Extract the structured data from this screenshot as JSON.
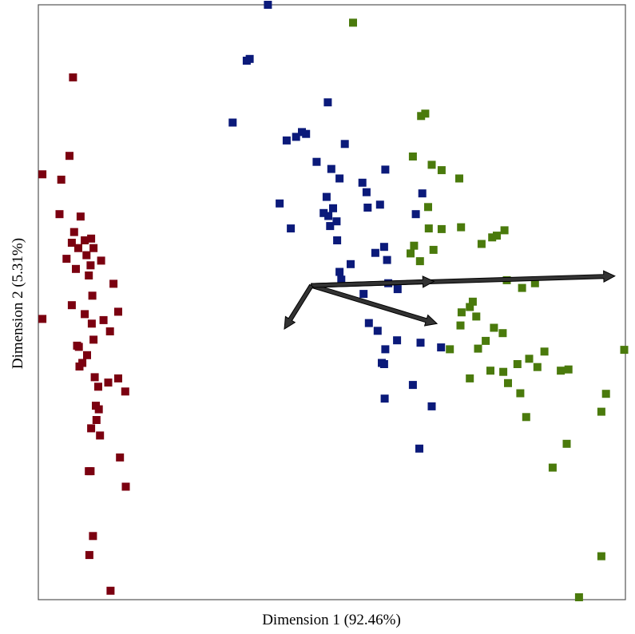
{
  "chart_data": {
    "type": "scatter",
    "title": "",
    "xlabel": "Dimension 1 (92.46%)",
    "ylabel": "Dimension 2 (5.31%)",
    "xlim": [
      0,
      100
    ],
    "ylim": [
      0,
      100
    ],
    "grid": false,
    "legend": "none",
    "colors": {
      "red": "#7b0010",
      "blue": "#0b1a7a",
      "green": "#4a7a0c",
      "arrow": "#333333"
    },
    "series": [
      {
        "color": "#7b0010",
        "points": [
          [
            5.9,
            87.8
          ],
          [
            0.7,
            71.5
          ],
          [
            5.3,
            74.6
          ],
          [
            3.9,
            70.6
          ],
          [
            3.6,
            64.8
          ],
          [
            7.2,
            64.4
          ],
          [
            6.1,
            61.8
          ],
          [
            5.7,
            60.0
          ],
          [
            7.9,
            60.4
          ],
          [
            9.0,
            60.7
          ],
          [
            6.8,
            59.1
          ],
          [
            9.4,
            59.1
          ],
          [
            8.2,
            57.9
          ],
          [
            4.8,
            57.3
          ],
          [
            10.7,
            57.0
          ],
          [
            8.9,
            56.2
          ],
          [
            6.4,
            55.6
          ],
          [
            8.6,
            54.5
          ],
          [
            12.8,
            53.1
          ],
          [
            9.2,
            51.1
          ],
          [
            5.7,
            49.5
          ],
          [
            13.6,
            48.4
          ],
          [
            7.9,
            48.0
          ],
          [
            0.7,
            47.2
          ],
          [
            11.1,
            47.0
          ],
          [
            9.1,
            46.4
          ],
          [
            12.2,
            45.1
          ],
          [
            9.4,
            43.7
          ],
          [
            6.6,
            42.7
          ],
          [
            6.9,
            42.5
          ],
          [
            8.3,
            41.1
          ],
          [
            7.5,
            39.8
          ],
          [
            7.0,
            39.2
          ],
          [
            9.6,
            37.4
          ],
          [
            13.6,
            37.2
          ],
          [
            11.9,
            36.5
          ],
          [
            10.2,
            35.8
          ],
          [
            14.8,
            35.0
          ],
          [
            9.8,
            32.6
          ],
          [
            10.3,
            32.0
          ],
          [
            9.9,
            30.2
          ],
          [
            9.0,
            28.8
          ],
          [
            10.5,
            27.6
          ],
          [
            13.9,
            23.9
          ],
          [
            8.6,
            21.6
          ],
          [
            8.9,
            21.6
          ],
          [
            14.9,
            19.0
          ],
          [
            9.3,
            10.7
          ],
          [
            8.7,
            7.5
          ],
          [
            12.3,
            1.5
          ]
        ]
      },
      {
        "color": "#0b1a7a",
        "points": [
          [
            39.1,
            100
          ],
          [
            36.0,
            90.9
          ],
          [
            35.5,
            90.6
          ],
          [
            49.3,
            83.6
          ],
          [
            33.1,
            80.2
          ],
          [
            44.9,
            78.6
          ],
          [
            45.6,
            78.3
          ],
          [
            43.9,
            77.8
          ],
          [
            42.3,
            77.2
          ],
          [
            52.2,
            76.6
          ],
          [
            47.4,
            73.6
          ],
          [
            49.9,
            72.4
          ],
          [
            59.1,
            72.3
          ],
          [
            51.3,
            70.8
          ],
          [
            55.2,
            70.1
          ],
          [
            65.4,
            68.3
          ],
          [
            55.9,
            68.5
          ],
          [
            49.1,
            67.7
          ],
          [
            41.1,
            66.6
          ],
          [
            56.1,
            65.9
          ],
          [
            58.2,
            66.4
          ],
          [
            50.2,
            65.8
          ],
          [
            49.4,
            64.5
          ],
          [
            48.6,
            65.0
          ],
          [
            64.3,
            64.8
          ],
          [
            50.8,
            63.6
          ],
          [
            49.7,
            62.8
          ],
          [
            43.0,
            62.4
          ],
          [
            50.9,
            60.4
          ],
          [
            58.9,
            59.3
          ],
          [
            57.4,
            58.3
          ],
          [
            59.4,
            57.1
          ],
          [
            53.2,
            56.4
          ],
          [
            51.3,
            55.1
          ],
          [
            51.6,
            53.8
          ],
          [
            59.6,
            53.2
          ],
          [
            55.4,
            51.4
          ],
          [
            61.2,
            52.2
          ],
          [
            56.3,
            46.5
          ],
          [
            57.8,
            45.2
          ],
          [
            61.1,
            43.6
          ],
          [
            65.1,
            43.2
          ],
          [
            68.6,
            42.4
          ],
          [
            59.1,
            42.1
          ],
          [
            58.5,
            39.8
          ],
          [
            58.9,
            39.6
          ],
          [
            63.8,
            36.1
          ],
          [
            59.0,
            33.8
          ],
          [
            67.0,
            32.5
          ],
          [
            64.9,
            25.4
          ]
        ]
      },
      {
        "color": "#4a7a0c",
        "points": [
          [
            53.6,
            97.0
          ],
          [
            65.9,
            81.7
          ],
          [
            65.2,
            81.3
          ],
          [
            63.8,
            74.5
          ],
          [
            68.7,
            72.2
          ],
          [
            67.0,
            73.1
          ],
          [
            71.7,
            70.8
          ],
          [
            66.4,
            66.0
          ],
          [
            66.5,
            62.4
          ],
          [
            68.7,
            62.3
          ],
          [
            72.0,
            62.6
          ],
          [
            79.4,
            62.1
          ],
          [
            78.1,
            61.2
          ],
          [
            77.3,
            60.9
          ],
          [
            75.5,
            59.8
          ],
          [
            64.0,
            59.5
          ],
          [
            63.4,
            58.2
          ],
          [
            67.3,
            58.8
          ],
          [
            65.0,
            56.9
          ],
          [
            79.8,
            53.7
          ],
          [
            84.6,
            53.2
          ],
          [
            82.4,
            52.4
          ],
          [
            74.0,
            50.1
          ],
          [
            73.5,
            49.2
          ],
          [
            72.1,
            48.3
          ],
          [
            74.6,
            47.6
          ],
          [
            71.9,
            46.1
          ],
          [
            77.6,
            45.7
          ],
          [
            79.1,
            44.8
          ],
          [
            76.2,
            43.5
          ],
          [
            74.9,
            42.2
          ],
          [
            70.1,
            42.1
          ],
          [
            99.8,
            42.0
          ],
          [
            86.2,
            41.7
          ],
          [
            83.6,
            40.5
          ],
          [
            81.6,
            39.6
          ],
          [
            85.0,
            39.1
          ],
          [
            79.2,
            38.3
          ],
          [
            77.0,
            38.5
          ],
          [
            90.3,
            38.7
          ],
          [
            89.0,
            38.5
          ],
          [
            73.5,
            37.2
          ],
          [
            80.0,
            36.4
          ],
          [
            82.1,
            34.7
          ],
          [
            96.7,
            34.6
          ],
          [
            95.9,
            31.6
          ],
          [
            83.1,
            30.7
          ],
          [
            90.0,
            26.2
          ],
          [
            87.6,
            22.2
          ],
          [
            95.9,
            7.3
          ],
          [
            92.1,
            0.4
          ]
        ]
      }
    ],
    "vectors": [
      {
        "from": [
          46.5,
          52.8
        ],
        "to": [
          98.2,
          54.4
        ]
      },
      {
        "from": [
          46.5,
          52.8
        ],
        "to": [
          67.9,
          46.4
        ]
      },
      {
        "from": [
          46.5,
          52.8
        ],
        "to": [
          67.4,
          53.5
        ]
      },
      {
        "from": [
          46.5,
          52.8
        ],
        "to": [
          41.9,
          45.5
        ]
      }
    ]
  }
}
